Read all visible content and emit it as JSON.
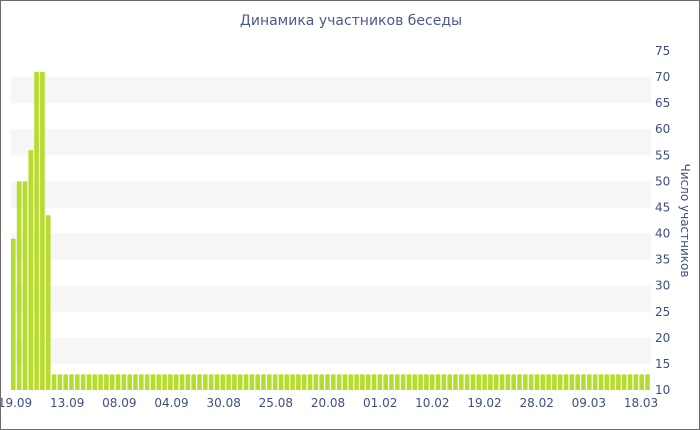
{
  "chart_data": {
    "type": "bar",
    "title": "Динамика участников беседы",
    "xlabel": "",
    "ylabel": "Число участников",
    "ylim": [
      10,
      75
    ],
    "y_ticks": [
      10,
      15,
      20,
      25,
      30,
      35,
      40,
      45,
      50,
      55,
      60,
      65,
      70,
      75
    ],
    "y_axis_position": "right",
    "grid": "horizontal alternating bands",
    "x_tick_labels": [
      "19.09",
      "13.09",
      "08.09",
      "04.09",
      "30.08",
      "25.08",
      "20.08",
      "01.02",
      "10.02",
      "19.02",
      "28.02",
      "09.03",
      "18.03"
    ],
    "values": [
      39,
      50,
      50,
      56,
      71,
      71,
      43.5,
      13,
      13,
      13,
      13,
      13,
      13,
      13,
      13,
      13,
      13,
      13,
      13,
      13,
      13,
      13,
      13,
      13,
      13,
      13,
      13,
      13,
      13,
      13,
      13,
      13,
      13,
      13,
      13,
      13,
      13,
      13,
      13,
      13,
      13,
      13,
      13,
      13,
      13,
      13,
      13,
      13,
      13,
      13,
      13,
      13,
      13,
      13,
      13,
      13,
      13,
      13,
      13,
      13,
      13,
      13,
      13,
      13,
      13,
      13,
      13,
      13,
      13,
      13,
      13,
      13,
      13,
      13,
      13,
      13,
      13,
      13,
      13,
      13,
      13,
      13,
      13,
      13,
      13,
      13,
      13,
      13,
      13,
      13,
      13,
      13,
      13,
      13,
      13,
      13,
      13,
      13,
      13,
      13,
      13,
      13,
      13,
      13,
      13,
      13,
      13,
      13,
      13,
      13
    ],
    "bar_color": "#b5dc2e",
    "band_color": "#f6f6f6",
    "text_color": "#3f4f80"
  }
}
